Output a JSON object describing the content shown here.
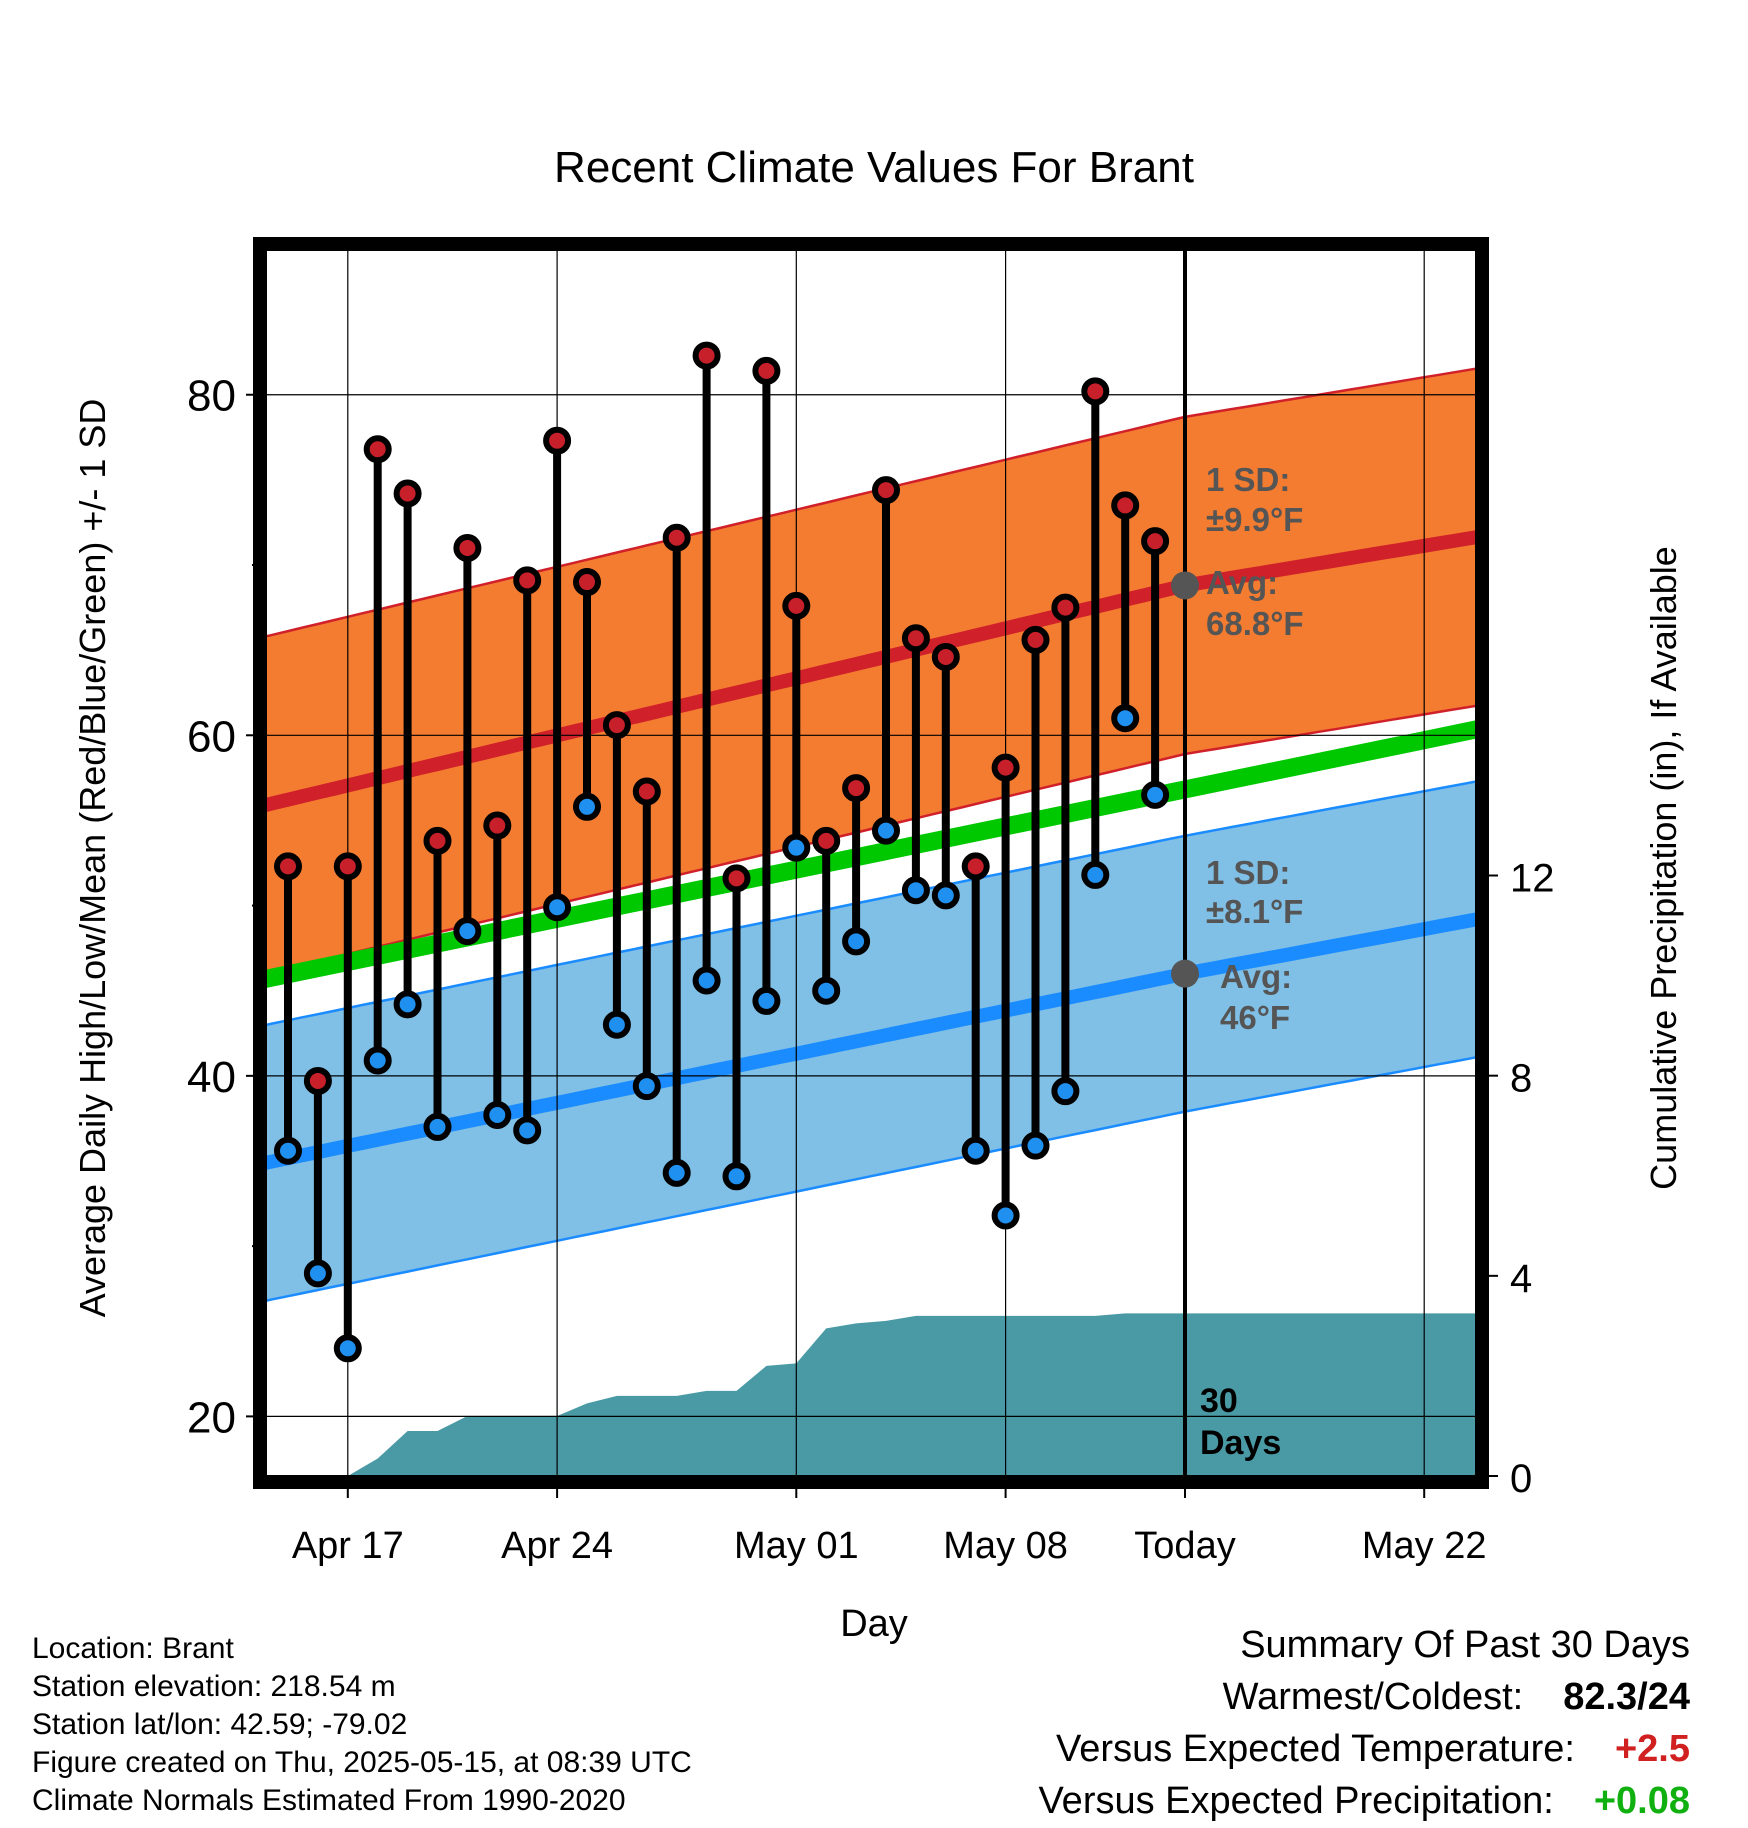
{
  "chart_data": {
    "type": "line",
    "title": "Recent Climate Values For Brant",
    "xlabel": "Day",
    "ylabel": "Average Daily High/Low/Mean (Red/Blue/Green) +/- 1 SD",
    "y2label": "Cumulative Precipitation (in), If Available",
    "ylim": [
      16.5,
      88.5
    ],
    "yticks": [
      20,
      40,
      60,
      80
    ],
    "y2lim": [
      0,
      24.5
    ],
    "y2ticks": [
      0,
      4,
      8,
      12
    ],
    "xticks": [
      "Apr 17",
      "Apr 24",
      "May 01",
      "May 08",
      "Today",
      "May 22"
    ],
    "today_marker_label": "30 Days",
    "grid": true,
    "days": [
      "Apr 15",
      "Apr 16",
      "Apr 17",
      "Apr 18",
      "Apr 19",
      "Apr 20",
      "Apr 21",
      "Apr 22",
      "Apr 23",
      "Apr 24",
      "Apr 25",
      "Apr 26",
      "Apr 27",
      "Apr 28",
      "Apr 29",
      "Apr 30",
      "May 01",
      "May 02",
      "May 03",
      "May 04",
      "May 05",
      "May 06",
      "May 07",
      "May 08",
      "May 09",
      "May 10",
      "May 11",
      "May 12",
      "May 13",
      "May 14"
    ],
    "high": [
      52.3,
      39.7,
      52.3,
      76.8,
      74.2,
      53.8,
      71.0,
      54.7,
      69.1,
      77.3,
      69.0,
      60.6,
      56.7,
      71.6,
      82.3,
      51.6,
      81.4,
      67.6,
      53.8,
      56.9,
      74.4,
      65.7,
      64.6,
      52.3,
      58.1,
      65.6,
      67.5,
      80.2,
      73.5,
      71.4
    ],
    "low": [
      35.6,
      28.4,
      24.0,
      40.9,
      44.2,
      37.0,
      48.5,
      37.7,
      36.8,
      49.9,
      55.8,
      43.0,
      39.4,
      34.3,
      45.6,
      34.1,
      44.4,
      53.4,
      45.0,
      47.9,
      54.4,
      50.9,
      50.6,
      35.6,
      31.8,
      35.9,
      39.1,
      51.8,
      61.0,
      56.5
    ],
    "normal_high": {
      "label_sd": "1 SD:",
      "sd_label": "±9.9°F",
      "avg_label": "Avg:",
      "avg_value": "68.8°F",
      "x": [
        "Apr 14",
        "Today",
        "May 25"
      ],
      "mean": [
        55.8,
        68.8,
        72.0
      ],
      "sd": 9.9
    },
    "normal_low": {
      "label_sd": "1 SD:",
      "sd_label": "±8.1°F",
      "avg_label": "Avg:",
      "avg_value": "46°F",
      "x": [
        "Apr 14",
        "Today",
        "May 25"
      ],
      "mean": [
        34.8,
        46.0,
        49.6
      ],
      "sd": 8.1
    },
    "normal_mean": {
      "x": [
        "Apr 14",
        "May 25"
      ],
      "values": [
        45.6,
        60.8
      ]
    },
    "cumulative_precip": [
      0,
      0,
      0,
      0.35,
      0.9,
      0.9,
      1.2,
      1.2,
      1.2,
      1.2,
      1.45,
      1.6,
      1.6,
      1.6,
      1.7,
      1.7,
      2.2,
      2.25,
      2.95,
      3.05,
      3.1,
      3.2,
      3.2,
      3.2,
      3.2,
      3.2,
      3.2,
      3.2,
      3.25,
      3.25,
      3.25
    ],
    "colors": {
      "high_band": "#f47c30",
      "high_line": "#d0202a",
      "low_band": "#80bfe6",
      "low_line": "#1a8cff",
      "mean_line": "#00c800",
      "precip": "#4a9aa5",
      "high_dot": "#c8202a",
      "low_dot": "#2090f0",
      "annotation": "#555555"
    }
  },
  "footer": {
    "location": "Location: Brant",
    "elevation": "Station elevation: 218.54 m",
    "latlon": "Station lat/lon: 42.59; -79.02",
    "created": "Figure created on Thu, 2025-05-15, at 08:39 UTC",
    "normals": "Climate Normals Estimated From 1990-2020"
  },
  "summary": {
    "title": "Summary Of Past 30 Days",
    "warm_cold_label": "Warmest/Coldest:",
    "warm_cold_value": "82.3/24",
    "temp_label": "Versus Expected Temperature:",
    "temp_value": "+2.5",
    "temp_color": "#d02020",
    "precip_label": "Versus Expected Precipitation:",
    "precip_value": "+0.08",
    "precip_color": "#10b010"
  }
}
